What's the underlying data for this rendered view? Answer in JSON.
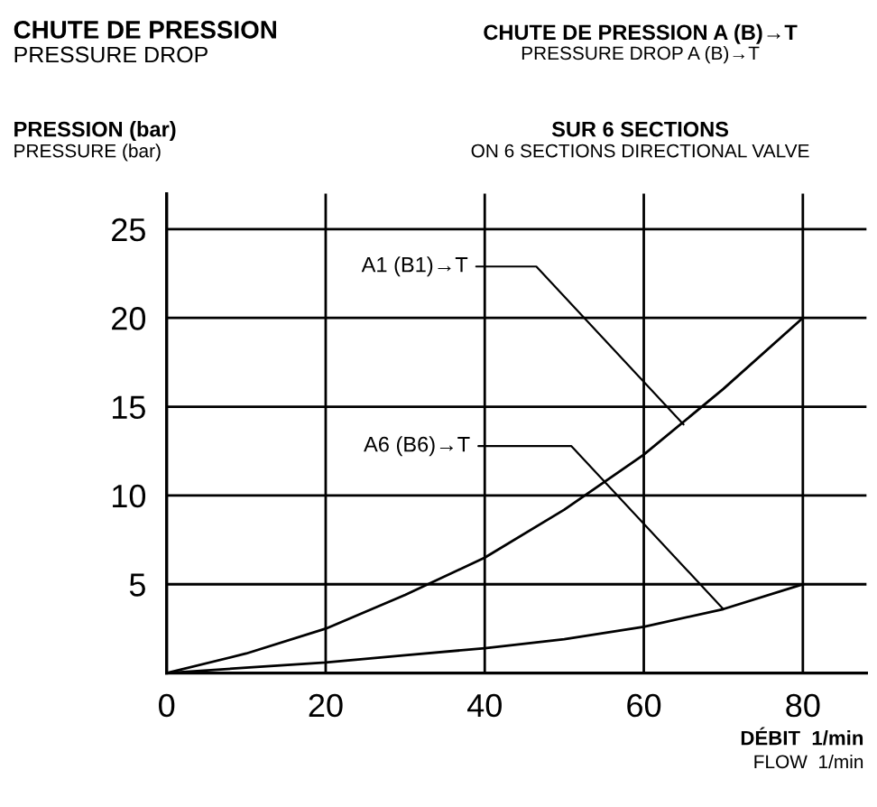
{
  "chart_data": {
    "type": "line",
    "title": "CHUTE DE PRESSION A (B)→T",
    "subtitle": "PRESSURE DROP A (B)→T",
    "ylabel": "PRESSION (bar)",
    "xlabel": "DÉBIT  1/min",
    "annotations": [
      "CHUTE DE PRESSION",
      "PRESSURE DROP",
      "PRESSURE (bar)",
      "SUR 6 SECTIONS",
      "ON 6 SECTIONS DIRECTIONAL VALVE",
      "FLOW  1/min",
      {
        "text": "A1 (B1)→T",
        "x": 65,
        "y": 14
      },
      {
        "text": "A6 (B6)→T",
        "x": 70,
        "y": 3.6
      }
    ],
    "x": [
      0,
      10,
      20,
      30,
      40,
      50,
      60,
      70,
      80
    ],
    "series": [
      {
        "color": "#000000",
        "values": [
          0,
          1.1,
          2.5,
          4.4,
          6.5,
          9.2,
          12.3,
          16,
          20
        ]
      },
      {
        "color": "#000000",
        "values": [
          0,
          0.3,
          0.6,
          1.0,
          1.4,
          1.9,
          2.6,
          3.6,
          5
        ]
      }
    ],
    "xlim": [
      0,
      88
    ],
    "ylim": [
      0,
      27
    ],
    "xticks": [
      0,
      20,
      40,
      60,
      80
    ],
    "yticks": [
      5,
      10,
      15,
      20,
      25
    ],
    "grid": true,
    "marker": "none",
    "line_style": "solid"
  }
}
